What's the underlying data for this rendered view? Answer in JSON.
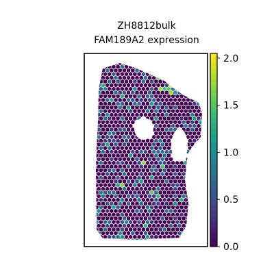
{
  "chart_data": {
    "type": "scatter",
    "title": [
      "ZH8812bulk",
      "FAM189A2 expression"
    ],
    "xlabel": "",
    "ylabel": "",
    "frame": true,
    "axis_ticks": false,
    "colorbar": {
      "colormap": "viridis",
      "range": [
        0.0,
        2.05
      ],
      "ticks": [
        0.0,
        0.5,
        1.0,
        1.5,
        2.0
      ],
      "tick_labels": [
        "0.0",
        "0.5",
        "1.0",
        "1.5",
        "2.0"
      ],
      "stops": [
        "#440154",
        "#482878",
        "#3e4a89",
        "#31688e",
        "#26828e",
        "#1f9e89",
        "#35b779",
        "#6ece58",
        "#b5de2b",
        "#fde725"
      ]
    },
    "spots": {
      "marker": "hexagon",
      "n_estimated": 1100,
      "value_distribution": "mostly 0.0 (dark purple), scattered spots 0.3-1.2, rare maxima near 2.0 in upper tissue edge",
      "background_value": 0.0
    }
  }
}
